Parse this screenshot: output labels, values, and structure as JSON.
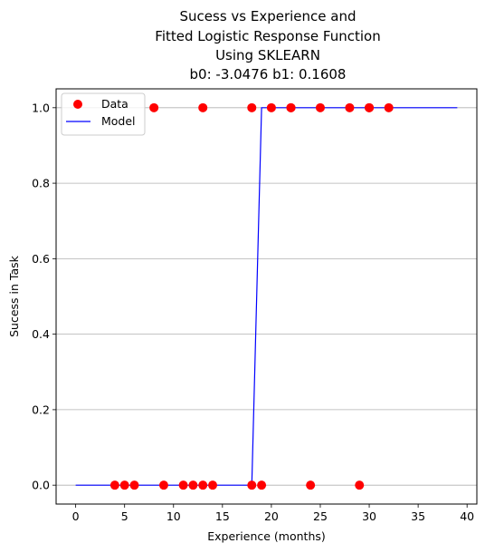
{
  "chart_data": {
    "type": "scatter",
    "title_lines": [
      "Sucess vs Experience and",
      "Fitted Logistic Response Function",
      "Using SKLEARN",
      "b0: -3.0476 b1: 0.1608"
    ],
    "xlabel": "Experience (months)",
    "ylabel": "Sucess in Task",
    "xlim": [
      -2,
      41
    ],
    "ylim": [
      -0.05,
      1.05
    ],
    "xticks": [
      0,
      5,
      10,
      15,
      20,
      25,
      30,
      35,
      40
    ],
    "yticks": [
      0.0,
      0.2,
      0.4,
      0.6,
      0.8,
      1.0
    ],
    "xtick_labels": [
      "0",
      "5",
      "10",
      "15",
      "20",
      "25",
      "30",
      "35",
      "40"
    ],
    "ytick_labels": [
      "0.0",
      "0.2",
      "0.4",
      "0.6",
      "0.8",
      "1.0"
    ],
    "grid": "horizontal",
    "legend_position": "upper-left",
    "series": [
      {
        "name": "Data",
        "kind": "points",
        "color": "#ff0000",
        "x": [
          4,
          5,
          6,
          8,
          9,
          11,
          12,
          13,
          13,
          14,
          18,
          18,
          19,
          20,
          22,
          22,
          24,
          25,
          28,
          29,
          30,
          30,
          32
        ],
        "y": [
          0,
          0,
          0,
          1,
          0,
          0,
          0,
          0,
          1,
          0,
          0,
          1,
          0,
          1,
          1,
          1,
          0,
          1,
          1,
          0,
          1,
          1,
          1
        ]
      },
      {
        "name": "Model",
        "kind": "line",
        "color": "#0000ff",
        "x": [
          0,
          18,
          19,
          39
        ],
        "y": [
          0,
          0,
          1,
          1
        ]
      }
    ]
  }
}
